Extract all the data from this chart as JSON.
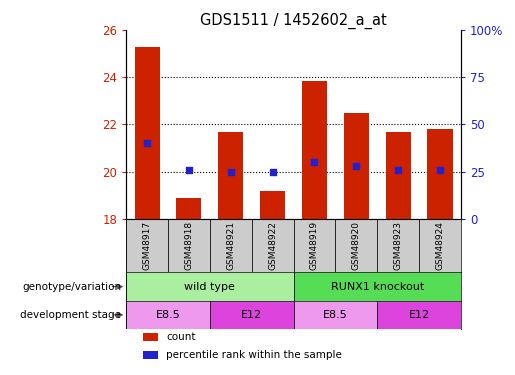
{
  "title": "GDS1511 / 1452602_a_at",
  "samples": [
    "GSM48917",
    "GSM48918",
    "GSM48921",
    "GSM48922",
    "GSM48919",
    "GSM48920",
    "GSM48923",
    "GSM48924"
  ],
  "counts": [
    25.3,
    18.9,
    21.7,
    19.2,
    23.85,
    22.5,
    21.7,
    21.8
  ],
  "percentile_ranks": [
    40,
    26,
    25,
    25,
    30,
    28,
    26,
    26
  ],
  "ylim_left": [
    18,
    26
  ],
  "ylim_right": [
    0,
    100
  ],
  "yticks_left": [
    18,
    20,
    22,
    24,
    26
  ],
  "yticks_right": [
    0,
    25,
    50,
    75,
    100
  ],
  "bar_color": "#cc2200",
  "dot_color": "#2222cc",
  "bg_color": "#ffffff",
  "genotype_groups": [
    {
      "label": "wild type",
      "start": 0,
      "end": 4,
      "color": "#aaeea0"
    },
    {
      "label": "RUNX1 knockout",
      "start": 4,
      "end": 8,
      "color": "#55dd55"
    }
  ],
  "dev_stage_groups": [
    {
      "label": "E8.5",
      "start": 0,
      "end": 2,
      "color": "#ee99ee"
    },
    {
      "label": "E12",
      "start": 2,
      "end": 4,
      "color": "#dd44dd"
    },
    {
      "label": "E8.5",
      "start": 4,
      "end": 6,
      "color": "#ee99ee"
    },
    {
      "label": "E12",
      "start": 6,
      "end": 8,
      "color": "#dd44dd"
    }
  ],
  "legend_items": [
    {
      "label": "count",
      "color": "#cc2200"
    },
    {
      "label": "percentile rank within the sample",
      "color": "#2222cc"
    }
  ],
  "label_genotype": "genotype/variation",
  "label_devstage": "development stage",
  "tick_color_left": "#cc2200",
  "tick_color_right": "#2222cc",
  "sample_box_color": "#cccccc"
}
